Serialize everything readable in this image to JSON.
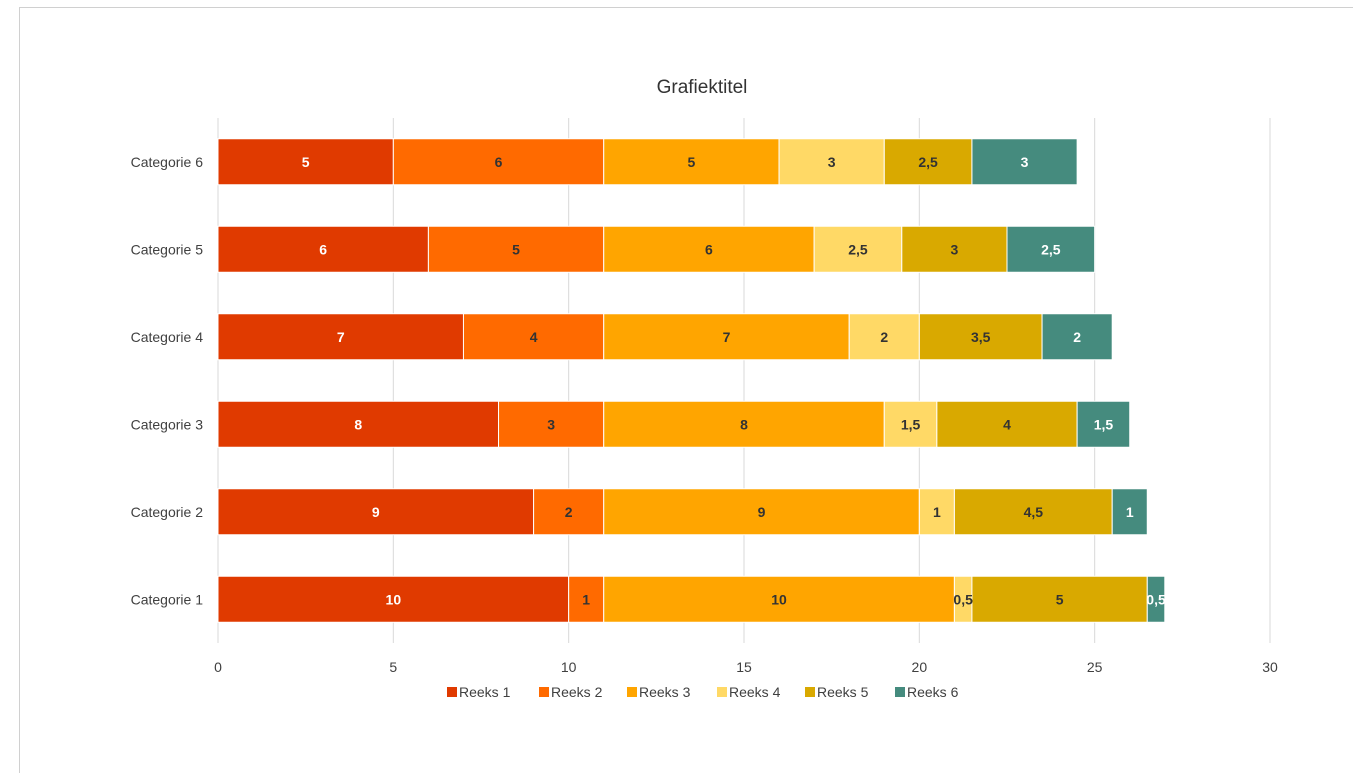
{
  "chart_data": {
    "type": "bar",
    "orientation": "horizontal",
    "stacked": true,
    "title": "Grafiektitel",
    "categories": [
      "Categorie 1",
      "Categorie 2",
      "Categorie 3",
      "Categorie 4",
      "Categorie 5",
      "Categorie 6"
    ],
    "series": [
      {
        "name": "Reeks 1",
        "color": "#E03A00",
        "label_color": "#ffffff",
        "values": [
          10,
          9,
          8,
          7,
          6,
          5
        ]
      },
      {
        "name": "Reeks 2",
        "color": "#FF6A00",
        "label_color": "#333333",
        "values": [
          1,
          2,
          3,
          4,
          5,
          6
        ]
      },
      {
        "name": "Reeks 3",
        "color": "#FFA500",
        "label_color": "#333333",
        "values": [
          10,
          9,
          8,
          7,
          6,
          5
        ]
      },
      {
        "name": "Reeks 4",
        "color": "#FFD966",
        "label_color": "#333333",
        "values": [
          0.5,
          1,
          1.5,
          2,
          2.5,
          3
        ]
      },
      {
        "name": "Reeks 5",
        "color": "#D9A900",
        "label_color": "#333333",
        "values": [
          5,
          4.5,
          4,
          3.5,
          3,
          2.5
        ]
      },
      {
        "name": "Reeks 6",
        "color": "#458B7E",
        "label_color": "#ffffff",
        "values": [
          0.5,
          1,
          1.5,
          2,
          2.5,
          3
        ]
      }
    ],
    "data_labels": [
      [
        "10",
        "9",
        "8",
        "7",
        "6",
        "5"
      ],
      [
        "1",
        "2",
        "3",
        "4",
        "5",
        "6"
      ],
      [
        "10",
        "9",
        "8",
        "7",
        "6",
        "5"
      ],
      [
        "0,5",
        "1",
        "1,5",
        "2",
        "2,5",
        "3"
      ],
      [
        "5",
        "4,5",
        "4",
        "3,5",
        "3",
        "2,5"
      ],
      [
        "0,5",
        "1",
        "1,5",
        "2",
        "2,5",
        "3"
      ]
    ],
    "xlim": [
      0,
      30
    ],
    "xticks": [
      0,
      5,
      10,
      15,
      20,
      25,
      30
    ],
    "xtick_labels": [
      "0",
      "5",
      "10",
      "15",
      "20",
      "25",
      "30"
    ],
    "grid": true,
    "legend_position": "bottom"
  }
}
